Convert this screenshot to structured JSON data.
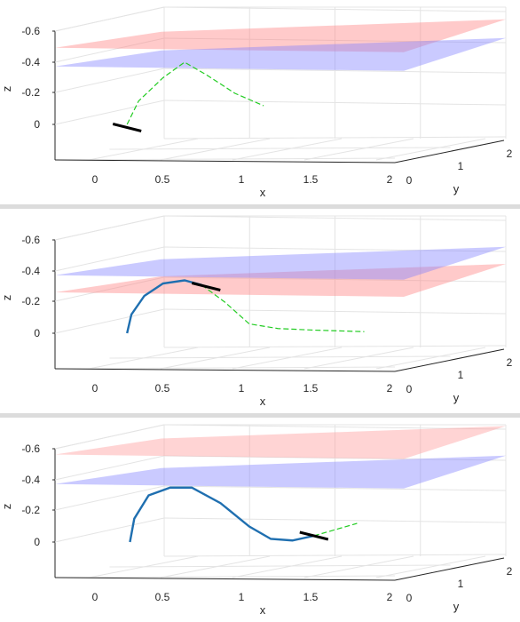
{
  "chart_data": [
    {
      "type": "line",
      "xlabel": "x",
      "ylabel": "y",
      "zlabel": "z",
      "xticks": [
        "0",
        "0.5",
        "1",
        "1.5",
        "2"
      ],
      "yticks": [
        "0",
        "1",
        "2"
      ],
      "zticks": [
        "-0.6",
        "-0.4",
        "-0.2",
        "0"
      ],
      "zlim": [
        0.1,
        -0.65
      ],
      "series": [
        {
          "style": "trajectory-executed",
          "color": "#1f6fb0",
          "points": []
        },
        {
          "style": "trajectory-planned",
          "color": "#22cc22",
          "points": [
            [
              0.1,
              0.0
            ],
            [
              0.18,
              -0.15
            ],
            [
              0.35,
              -0.3
            ],
            [
              0.5,
              -0.4
            ],
            [
              0.65,
              -0.32
            ],
            [
              0.85,
              -0.2
            ],
            [
              1.05,
              -0.12
            ]
          ]
        }
      ],
      "surfaces": [
        {
          "name": "upper",
          "color": "#ff8080",
          "z": -0.55
        },
        {
          "name": "lower",
          "color": "#8080ff",
          "z": -0.43
        }
      ],
      "vehicle_position": [
        0.1,
        0.02
      ]
    },
    {
      "type": "line",
      "xlabel": "x",
      "ylabel": "y",
      "zlabel": "z",
      "xticks": [
        "0",
        "0.5",
        "1",
        "1.5",
        "2"
      ],
      "yticks": [
        "0",
        "1",
        "2"
      ],
      "zticks": [
        "-0.6",
        "-0.4",
        "-0.2",
        "0"
      ],
      "zlim": [
        0.1,
        -0.65
      ],
      "series": [
        {
          "style": "trajectory-executed",
          "color": "#1f6fb0",
          "points": [
            [
              0.1,
              0.0
            ],
            [
              0.13,
              -0.12
            ],
            [
              0.22,
              -0.24
            ],
            [
              0.35,
              -0.32
            ],
            [
              0.5,
              -0.34
            ],
            [
              0.62,
              -0.31
            ]
          ]
        },
        {
          "style": "trajectory-planned",
          "color": "#22cc22",
          "points": [
            [
              0.62,
              -0.31
            ],
            [
              0.78,
              -0.2
            ],
            [
              0.95,
              -0.06
            ],
            [
              1.15,
              -0.03
            ],
            [
              1.4,
              -0.02
            ],
            [
              1.75,
              -0.01
            ]
          ]
        }
      ],
      "surfaces": [
        {
          "name": "lower",
          "color": "#ff8080",
          "z": -0.32
        },
        {
          "name": "upper",
          "color": "#8080ff",
          "z": -0.43
        }
      ],
      "vehicle_position": [
        0.65,
        -0.3
      ]
    },
    {
      "type": "line",
      "xlabel": "x",
      "ylabel": "y",
      "zlabel": "z",
      "xticks": [
        "0",
        "0.5",
        "1",
        "1.5",
        "2"
      ],
      "yticks": [
        "0",
        "1",
        "2"
      ],
      "zticks": [
        "-0.6",
        "-0.4",
        "-0.2",
        "0"
      ],
      "zlim": [
        0.1,
        -0.65
      ],
      "series": [
        {
          "style": "trajectory-executed",
          "color": "#1f6fb0",
          "points": [
            [
              0.12,
              0.0
            ],
            [
              0.15,
              -0.15
            ],
            [
              0.25,
              -0.3
            ],
            [
              0.4,
              -0.35
            ],
            [
              0.55,
              -0.35
            ],
            [
              0.75,
              -0.25
            ],
            [
              0.95,
              -0.1
            ],
            [
              1.1,
              -0.02
            ],
            [
              1.25,
              -0.01
            ],
            [
              1.4,
              -0.04
            ]
          ]
        },
        {
          "style": "trajectory-planned",
          "color": "#22cc22",
          "points": [
            [
              1.4,
              -0.04
            ],
            [
              1.55,
              -0.08
            ],
            [
              1.7,
              -0.12
            ]
          ]
        }
      ],
      "surfaces": [
        {
          "name": "upper",
          "color": "#ff9999",
          "z": -0.62
        },
        {
          "name": "lower",
          "color": "#8080ff",
          "z": -0.43
        }
      ],
      "vehicle_position": [
        1.4,
        -0.04
      ]
    }
  ]
}
